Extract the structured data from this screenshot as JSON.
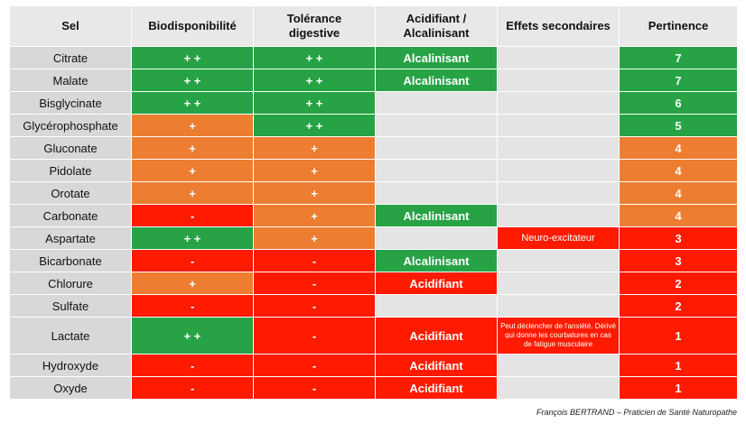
{
  "colors": {
    "green": "#27a345",
    "orange": "#ed7d31",
    "red": "#ff1a00",
    "grey": "#d8d8d8"
  },
  "headers": [
    "Sel",
    "Biodisponibilité",
    "Tolérance\ndigestive",
    "Acidifiant /\nAlcalinisant",
    "Effets secondaires",
    "Pertinence"
  ],
  "rows": [
    {
      "sel": "Citrate",
      "bio": "+ +",
      "tol": "+ +",
      "acid": "Alcalinisant",
      "effets": "",
      "pert": "7"
    },
    {
      "sel": "Malate",
      "bio": "+ +",
      "tol": "+ +",
      "acid": "Alcalinisant",
      "effets": "",
      "pert": "7"
    },
    {
      "sel": "Bisglycinate",
      "bio": "+ +",
      "tol": "+ +",
      "acid": "",
      "effets": "",
      "pert": "6"
    },
    {
      "sel": "Glycérophosphate",
      "bio": "+",
      "tol": "+ +",
      "acid": "",
      "effets": "",
      "pert": "5"
    },
    {
      "sel": "Gluconate",
      "bio": "+",
      "tol": "+",
      "acid": "",
      "effets": "",
      "pert": "4"
    },
    {
      "sel": "Pidolate",
      "bio": "+",
      "tol": "+",
      "acid": "",
      "effets": "",
      "pert": "4"
    },
    {
      "sel": "Orotate",
      "bio": "+",
      "tol": "+",
      "acid": "",
      "effets": "",
      "pert": "4"
    },
    {
      "sel": "Carbonate",
      "bio": "-",
      "tol": "+",
      "acid": "Alcalinisant",
      "effets": "",
      "pert": "4"
    },
    {
      "sel": "Aspartate",
      "bio": "+ +",
      "tol": "+",
      "acid": "",
      "effets": "Neuro-excitateur",
      "pert": "3"
    },
    {
      "sel": "Bicarbonate",
      "bio": "-",
      "tol": "-",
      "acid": "Alcalinisant",
      "effets": "",
      "pert": "3"
    },
    {
      "sel": "Chlorure",
      "bio": "+",
      "tol": "-",
      "acid": "Acidifiant",
      "effets": "",
      "pert": "2"
    },
    {
      "sel": "Sulfate",
      "bio": "-",
      "tol": "-",
      "acid": "",
      "effets": "",
      "pert": "2"
    },
    {
      "sel": "Lactate",
      "bio": "+ +",
      "tol": "-",
      "acid": "Acidifiant",
      "effets": "Peut déclencher de l'anxiété. Dérivé qui donne les courbatures en cas de fatigue musculaire",
      "pert": "1"
    },
    {
      "sel": "Hydroxyde",
      "bio": "-",
      "tol": "-",
      "acid": "Acidifiant",
      "effets": "",
      "pert": "1"
    },
    {
      "sel": "Oxyde",
      "bio": "-",
      "tol": "-",
      "acid": "Acidifiant",
      "effets": "",
      "pert": "1"
    }
  ],
  "footer": "François BERTRAND – Praticien de Santé Naturopathe"
}
